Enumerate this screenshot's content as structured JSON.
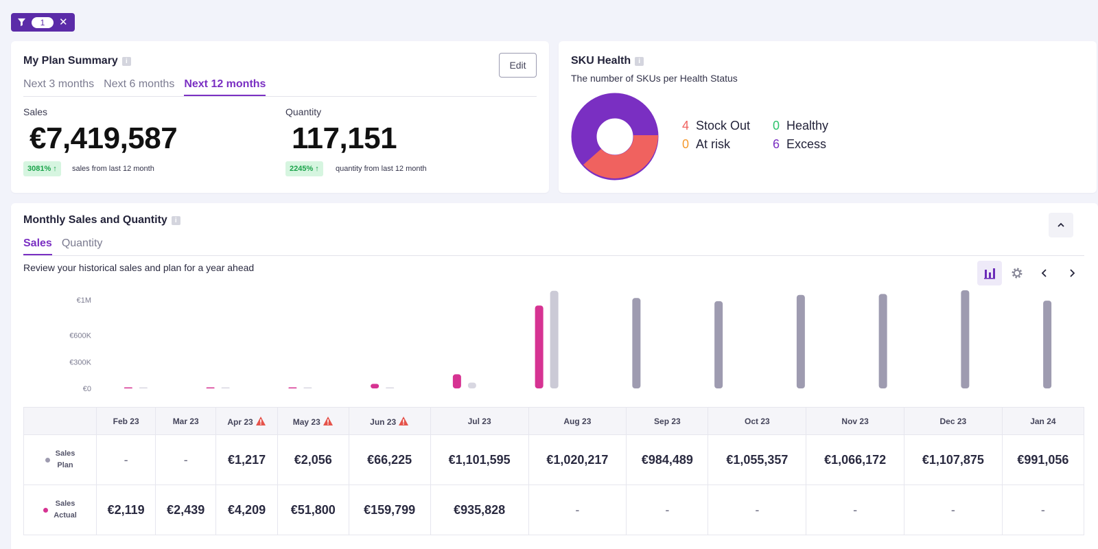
{
  "filter": {
    "count": "1"
  },
  "plan_summary": {
    "title": "My Plan Summary",
    "edit_label": "Edit",
    "tabs": [
      "Next 3 months",
      "Next 6 months",
      "Next 12 months"
    ],
    "active_tab": 2,
    "sales": {
      "label": "Sales",
      "value": "€7,419,587",
      "badge": "3081% ↑",
      "note": "sales from last 12 month"
    },
    "quantity": {
      "label": "Quantity",
      "value": "117,151",
      "badge": "2245% ↑",
      "note": "quantity from last 12 month"
    }
  },
  "sku_health": {
    "title": "SKU Health",
    "subtitle": "The number of SKUs per Health Status",
    "items": [
      {
        "num": "4",
        "label": "Stock Out",
        "color": "#f0625f"
      },
      {
        "num": "0",
        "label": "Healthy",
        "color": "#2cc36b"
      },
      {
        "num": "0",
        "label": "At risk",
        "color": "#f59a2e"
      },
      {
        "num": "6",
        "label": "Excess",
        "color": "#7a2fc2"
      }
    ]
  },
  "monthly": {
    "title": "Monthly Sales and Quantity",
    "tabs": [
      "Sales",
      "Quantity"
    ],
    "active_tab": 0,
    "description": "Review your historical sales and plan for a year ahead",
    "y_ticks": [
      "€1M",
      "€600K",
      "€300K",
      "€0"
    ],
    "row_labels": {
      "plan": {
        "t1": "Sales",
        "t2": "Plan"
      },
      "actual": {
        "t1": "Sales",
        "t2": "Actual"
      }
    },
    "months": [
      {
        "label": "Feb 23",
        "warn": false,
        "plan": "-",
        "actual": "€2,119"
      },
      {
        "label": "Mar 23",
        "warn": false,
        "plan": "-",
        "actual": "€2,439"
      },
      {
        "label": "Apr 23",
        "warn": true,
        "plan": "€1,217",
        "actual": "€4,209"
      },
      {
        "label": "May 23",
        "warn": true,
        "plan": "€2,056",
        "actual": "€51,800"
      },
      {
        "label": "Jun 23",
        "warn": true,
        "plan": "€66,225",
        "actual": "€159,799"
      },
      {
        "label": "Jul 23",
        "warn": false,
        "plan": "€1,101,595",
        "actual": "€935,828"
      },
      {
        "label": "Aug 23",
        "warn": false,
        "plan": "€1,020,217",
        "actual": "-"
      },
      {
        "label": "Sep 23",
        "warn": false,
        "plan": "€984,489",
        "actual": "-"
      },
      {
        "label": "Oct 23",
        "warn": false,
        "plan": "€1,055,357",
        "actual": "-"
      },
      {
        "label": "Nov 23",
        "warn": false,
        "plan": "€1,066,172",
        "actual": "-"
      },
      {
        "label": "Dec 23",
        "warn": false,
        "plan": "€1,107,875",
        "actual": "-"
      },
      {
        "label": "Jan 24",
        "warn": false,
        "plan": "€991,056",
        "actual": "-"
      }
    ]
  },
  "chart_data": {
    "type": "bar",
    "categories": [
      "Feb 23",
      "Mar 23",
      "Apr 23",
      "May 23",
      "Jun 23",
      "Jul 23",
      "Aug 23",
      "Sep 23",
      "Oct 23",
      "Nov 23",
      "Dec 23",
      "Jan 24"
    ],
    "series": [
      {
        "color": "#d63392",
        "values": [
          2119,
          2439,
          4209,
          51800,
          159799,
          935828,
          null,
          null,
          null,
          null,
          null,
          null
        ]
      },
      {
        "color": "#9e9bb0",
        "values": [
          0,
          0,
          1217,
          2056,
          66225,
          1101595,
          1020217,
          984489,
          1055357,
          1066172,
          1107875,
          991056
        ]
      }
    ],
    "y_tick_values": [
      1000000,
      600000,
      300000,
      0
    ],
    "ylim": [
      0,
      1100000
    ]
  }
}
